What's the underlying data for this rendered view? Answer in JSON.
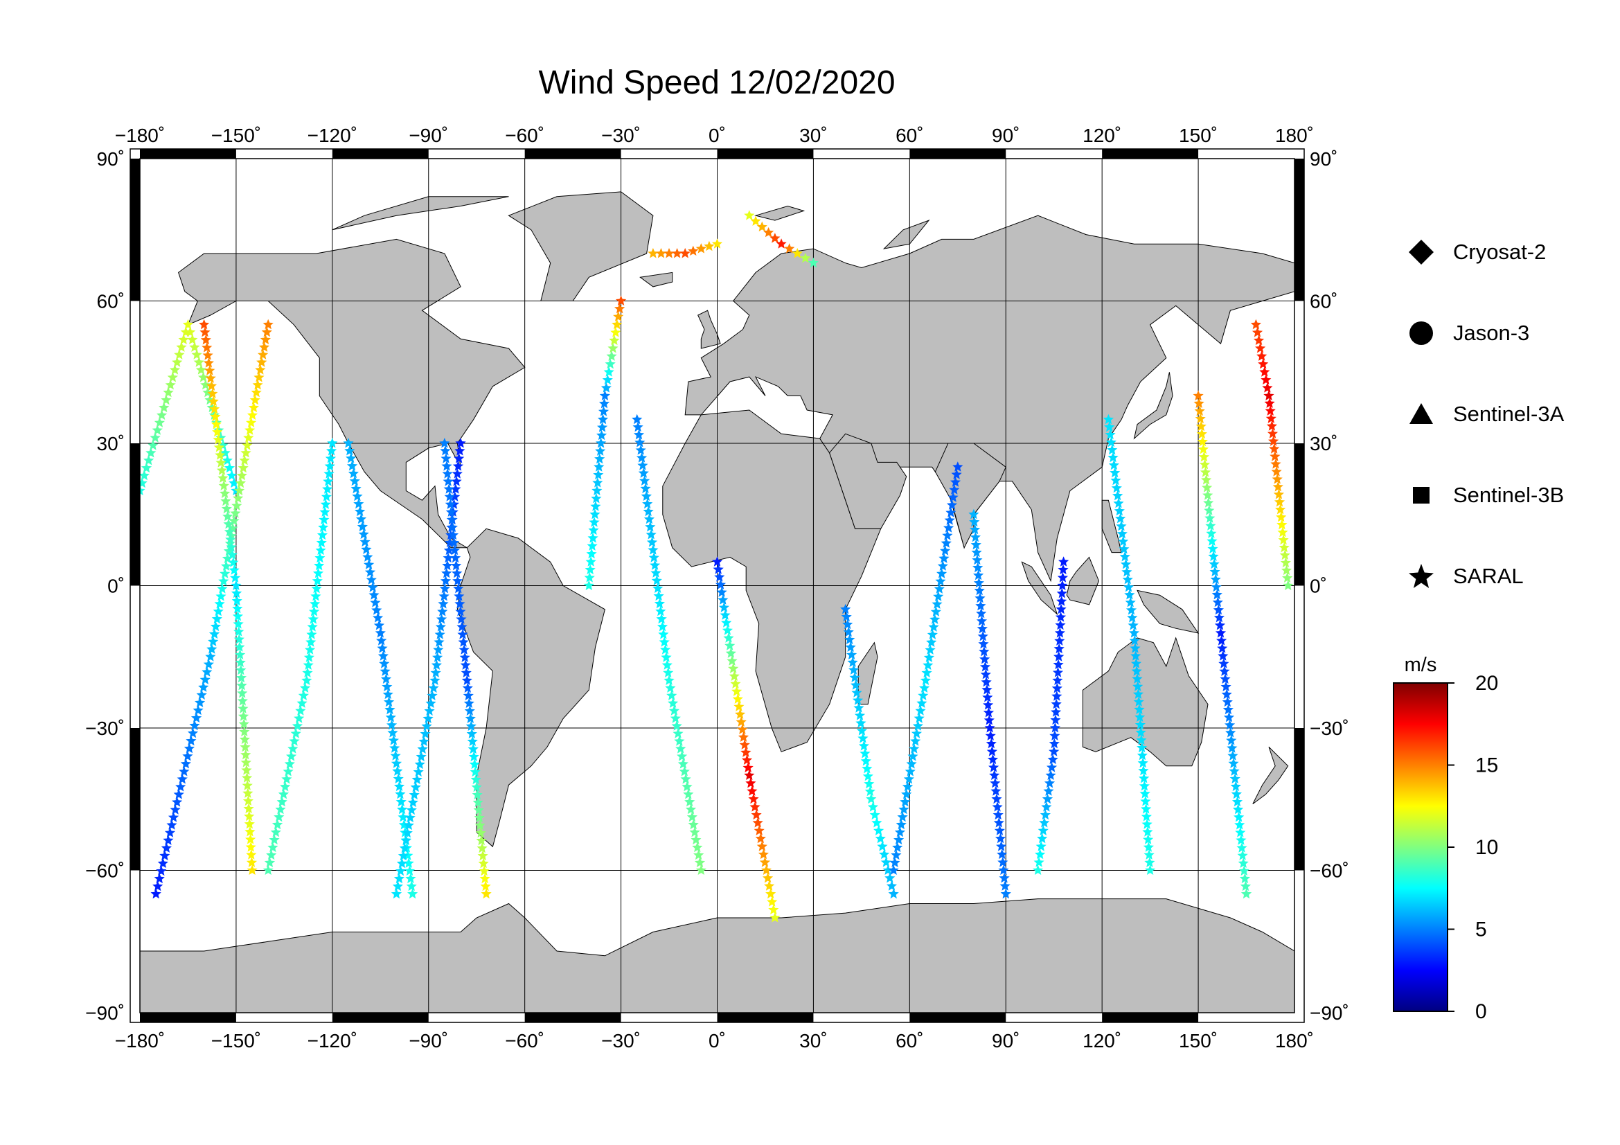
{
  "title": "Wind Speed 12/02/2020",
  "map": {
    "extent": {
      "lon": [
        -180,
        180
      ],
      "lat": [
        -90,
        90
      ]
    },
    "graticule_step": 30,
    "land_color": "#bebebe",
    "ocean_color": "#ffffff",
    "frame_color": "#000000",
    "top_lon_labels": [
      "−180˚",
      "−150˚",
      "−120˚",
      "−90˚",
      "−60˚",
      "−30˚",
      "0˚",
      "30˚",
      "60˚",
      "90˚",
      "120˚",
      "150˚",
      "180˚"
    ],
    "bottom_lon_labels": [
      "−180˚",
      "−150˚",
      "−120˚",
      "−90˚",
      "−60˚",
      "−30˚",
      "0˚",
      "30˚",
      "60˚",
      "90˚",
      "120˚",
      "150˚",
      "180˚"
    ],
    "left_lat_labels": [
      "90˚",
      "60˚",
      "30˚",
      "0˚",
      "−30˚",
      "−60˚",
      "−90˚"
    ],
    "right_lat_labels": [
      "90˚",
      "60˚",
      "30˚",
      "0˚",
      "−30˚",
      "−60˚",
      "−90˚"
    ]
  },
  "legend": [
    {
      "symbol": "diamond",
      "label": "Cryosat-2"
    },
    {
      "symbol": "circle",
      "label": "Jason-3"
    },
    {
      "symbol": "triangle",
      "label": "Sentinel-3A"
    },
    {
      "symbol": "square",
      "label": "Sentinel-3B"
    },
    {
      "symbol": "star",
      "label": "SARAL"
    }
  ],
  "colorbar": {
    "unit": "m/s",
    "range": [
      0,
      20
    ],
    "ticks": [
      "20",
      "15",
      "10",
      "5",
      "0"
    ],
    "tick_values": [
      20,
      15,
      10,
      5,
      0
    ],
    "colors": [
      "#000080",
      "#0000ff",
      "#0080ff",
      "#00ffff",
      "#80ff80",
      "#ffff00",
      "#ff8000",
      "#ff0000",
      "#800000"
    ]
  },
  "chart_data": {
    "type": "scatter",
    "description_x": "Longitude",
    "description_y": "Latitude",
    "value_unit": "m/s",
    "tracks": [
      {
        "satellite": "SARAL",
        "lon": [
          -180,
          -165,
          -150
        ],
        "lat": [
          20,
          55,
          20
        ],
        "speed": [
          8,
          12,
          7
        ]
      },
      {
        "satellite": "SARAL",
        "lon": [
          -175,
          -158,
          -140
        ],
        "lat": [
          -65,
          -15,
          55
        ],
        "speed": [
          3,
          6,
          15
        ]
      },
      {
        "satellite": "SARAL",
        "lon": [
          -160,
          -150,
          -145
        ],
        "lat": [
          55,
          0,
          -60
        ],
        "speed": [
          16,
          7,
          13
        ]
      },
      {
        "satellite": "SARAL",
        "lon": [
          -140,
          -128,
          -120
        ],
        "lat": [
          -60,
          -20,
          30
        ],
        "speed": [
          9,
          8,
          7
        ]
      },
      {
        "satellite": "SARAL",
        "lon": [
          -115,
          -105,
          -95
        ],
        "lat": [
          30,
          -10,
          -65
        ],
        "speed": [
          6,
          5,
          8
        ]
      },
      {
        "satellite": "SARAL",
        "lon": [
          -100,
          -88,
          -80
        ],
        "lat": [
          -65,
          -20,
          30
        ],
        "speed": [
          7,
          6,
          3
        ]
      },
      {
        "satellite": "SARAL",
        "lon": [
          -85,
          -78,
          -72
        ],
        "lat": [
          30,
          -20,
          -65
        ],
        "speed": [
          5,
          4,
          13
        ]
      },
      {
        "satellite": "SARAL",
        "lon": [
          -40,
          -35,
          -30
        ],
        "lat": [
          0,
          40,
          60
        ],
        "speed": [
          8,
          5,
          16
        ]
      },
      {
        "satellite": "SARAL",
        "lon": [
          -25,
          -15,
          -5
        ],
        "lat": [
          35,
          -20,
          -60
        ],
        "speed": [
          5,
          8,
          10
        ]
      },
      {
        "satellite": "SARAL",
        "lon": [
          0,
          10,
          18
        ],
        "lat": [
          5,
          -40,
          -70
        ],
        "speed": [
          3,
          18,
          12
        ]
      },
      {
        "satellite": "SARAL",
        "lon": [
          40,
          48,
          55
        ],
        "lat": [
          -5,
          -45,
          -65
        ],
        "speed": [
          5,
          8,
          6
        ]
      },
      {
        "satellite": "SARAL",
        "lon": [
          55,
          65,
          75
        ],
        "lat": [
          -60,
          -20,
          25
        ],
        "speed": [
          5,
          7,
          4
        ]
      },
      {
        "satellite": "SARAL",
        "lon": [
          80,
          85,
          90
        ],
        "lat": [
          15,
          -30,
          -65
        ],
        "speed": [
          6,
          3,
          5
        ]
      },
      {
        "satellite": "SARAL",
        "lon": [
          100,
          105,
          108
        ],
        "lat": [
          -60,
          -35,
          5
        ],
        "speed": [
          8,
          4,
          3
        ]
      },
      {
        "satellite": "SARAL",
        "lon": [
          122,
          130,
          135
        ],
        "lat": [
          35,
          -10,
          -60
        ],
        "speed": [
          7,
          6,
          8
        ]
      },
      {
        "satellite": "SARAL",
        "lon": [
          150,
          157,
          165
        ],
        "lat": [
          40,
          -10,
          -65
        ],
        "speed": [
          15,
          3,
          9
        ]
      },
      {
        "satellite": "SARAL",
        "lon": [
          168,
          172,
          178
        ],
        "lat": [
          55,
          40,
          0
        ],
        "speed": [
          16,
          18,
          10
        ]
      },
      {
        "satellite": "SARAL",
        "lon": [
          -20,
          -10,
          0
        ],
        "lat": [
          70,
          70,
          72
        ],
        "speed": [
          14,
          16,
          13
        ]
      },
      {
        "satellite": "SARAL",
        "lon": [
          10,
          20,
          30
        ],
        "lat": [
          78,
          72,
          68
        ],
        "speed": [
          12,
          17,
          9
        ]
      }
    ]
  }
}
